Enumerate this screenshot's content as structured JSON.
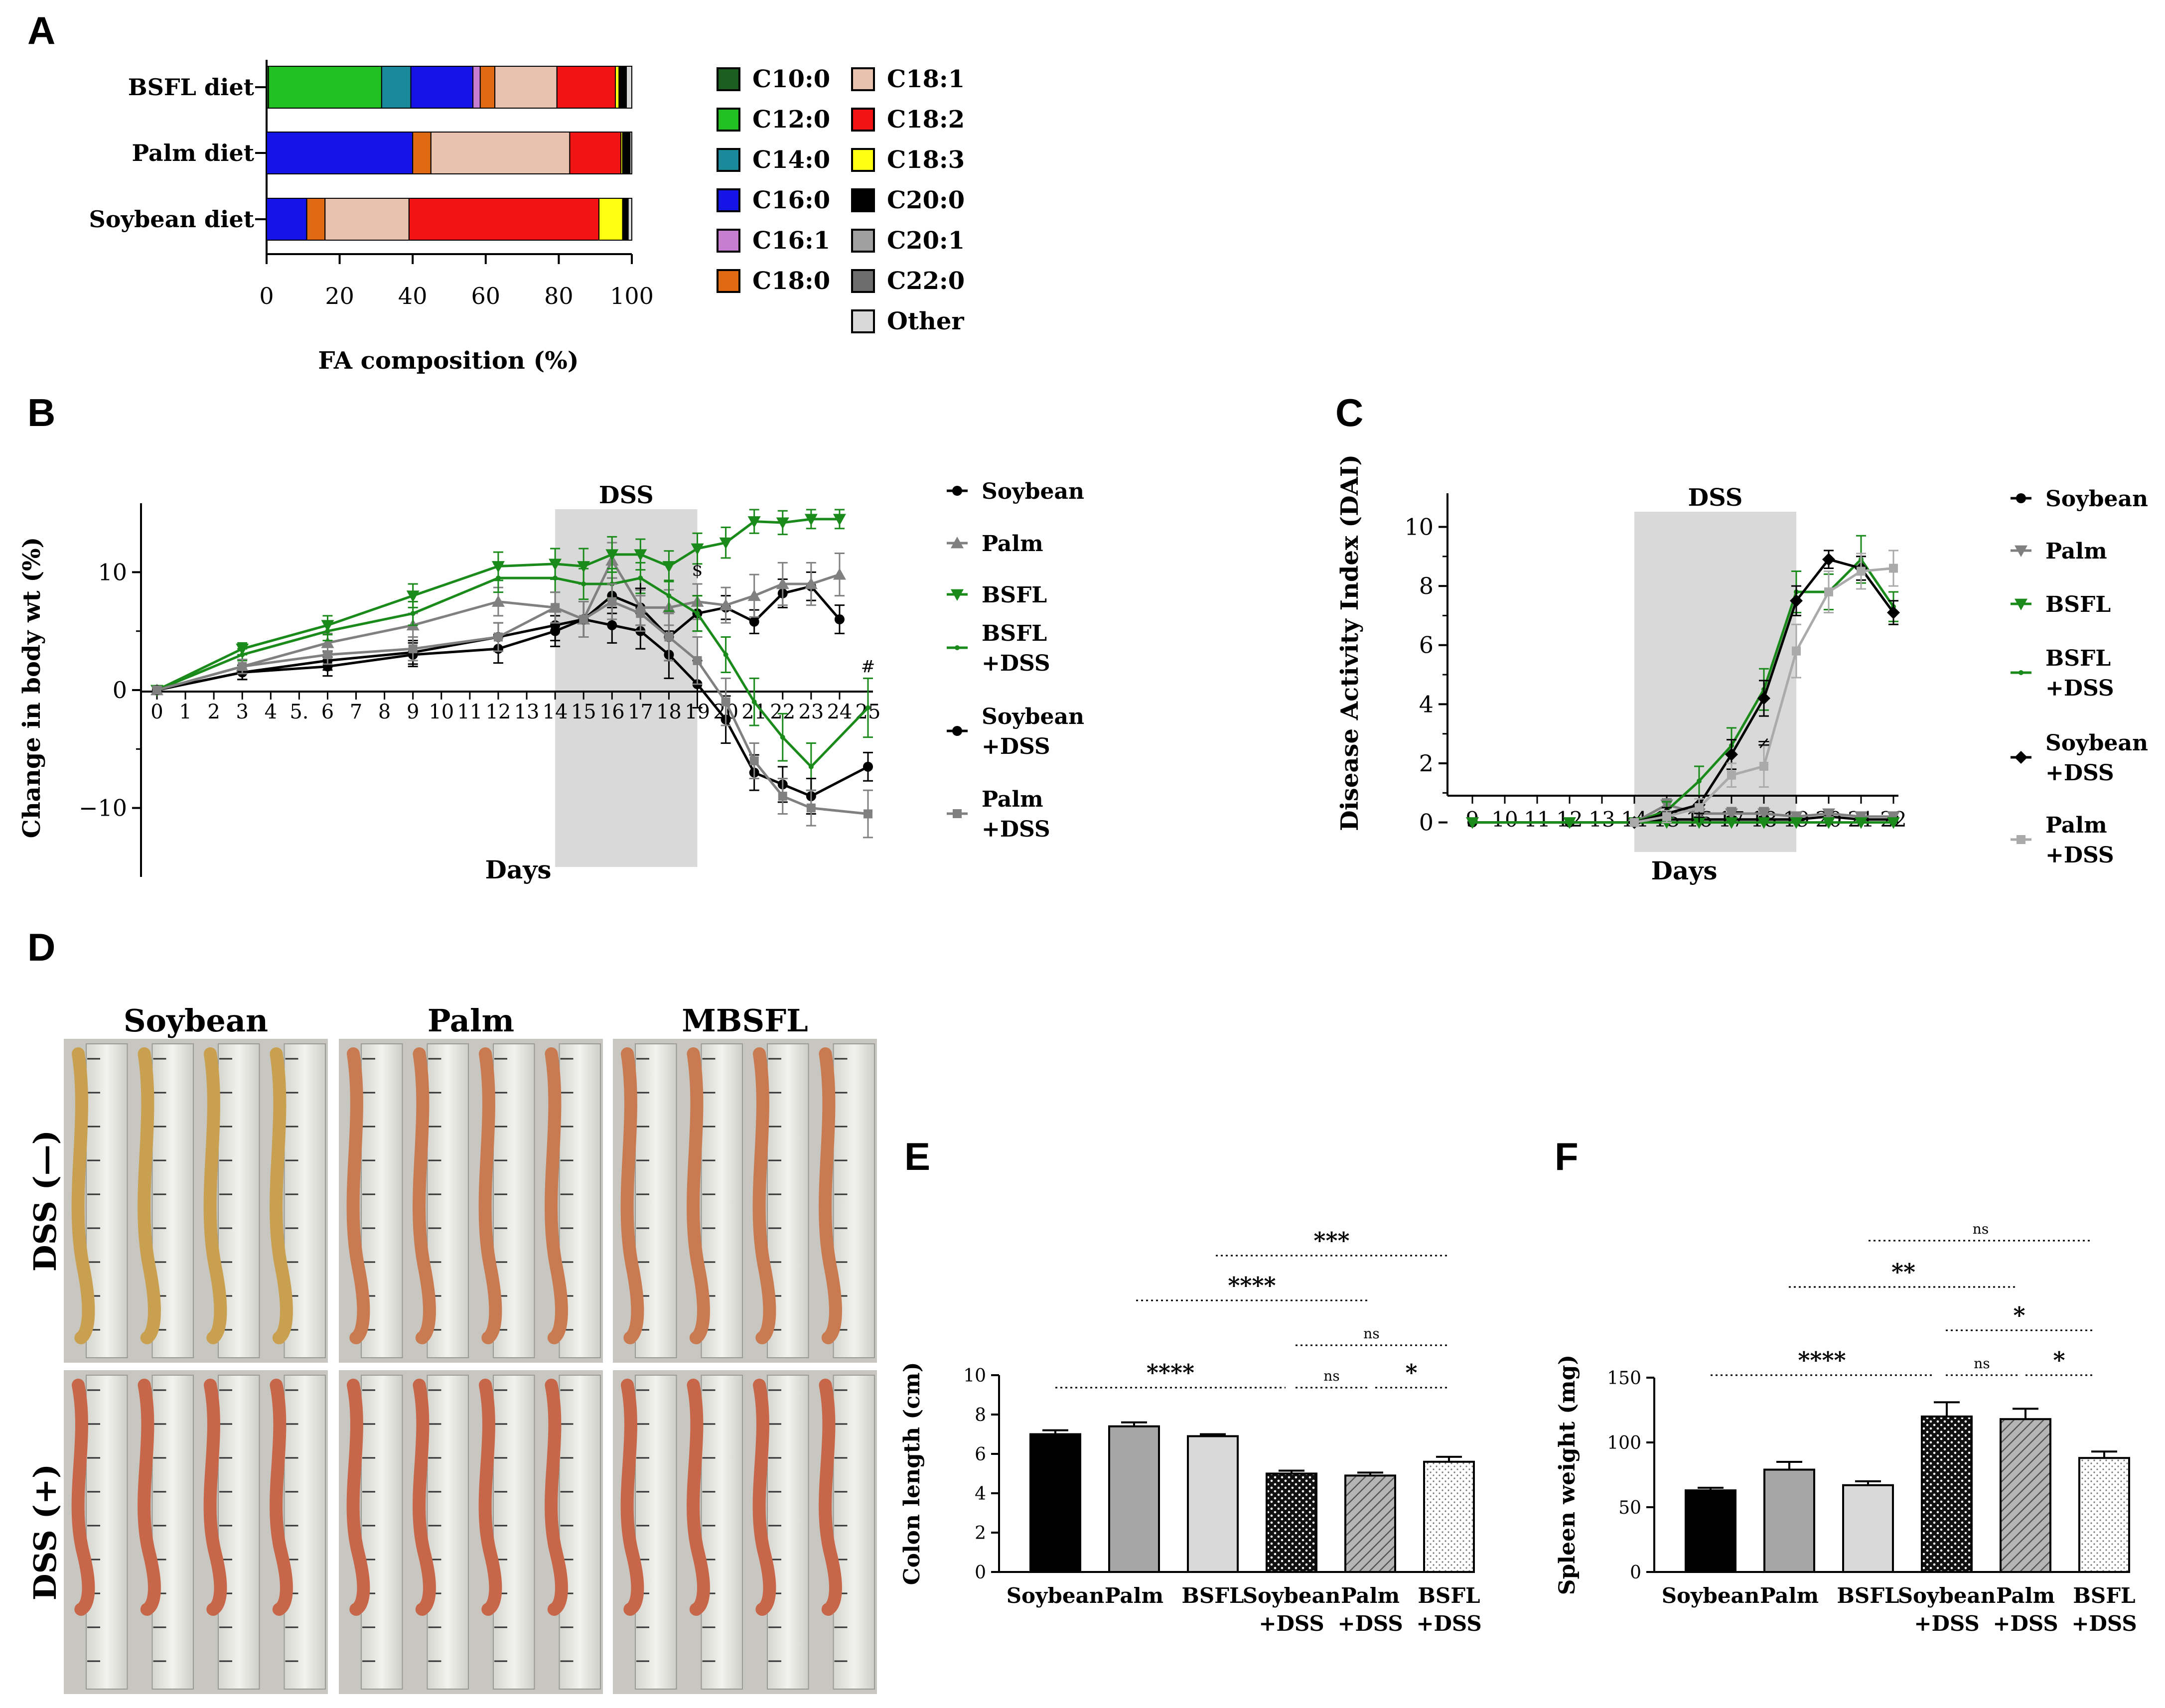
{
  "panels": {
    "A": {
      "label": "A"
    },
    "B": {
      "label": "B"
    },
    "C": {
      "label": "C"
    },
    "D": {
      "label": "D"
    },
    "E": {
      "label": "E"
    },
    "F": {
      "label": "F"
    }
  },
  "chart_data": [
    {
      "id": "A",
      "type": "bar",
      "orientation": "horizontal-stacked",
      "xlabel": "FA composition (%)",
      "xlim": [
        0,
        100
      ],
      "xticks": [
        "0",
        "20",
        "40",
        "60",
        "80",
        "100"
      ],
      "categories": [
        "BSFL diet",
        "Palm diet",
        "Soybean diet"
      ],
      "legend": [
        {
          "name": "C10:0",
          "color": "#1b5e20"
        },
        {
          "name": "C12:0",
          "color": "#22c022"
        },
        {
          "name": "C14:0",
          "color": "#1a8a9a"
        },
        {
          "name": "C16:0",
          "color": "#1414e6"
        },
        {
          "name": "C16:1",
          "color": "#c77dd0"
        },
        {
          "name": "C18:0",
          "color": "#e06a14"
        },
        {
          "name": "C18:1",
          "color": "#e8c2ae"
        },
        {
          "name": "C18:2",
          "color": "#f01414"
        },
        {
          "name": "C18:3",
          "color": "#ffff14"
        },
        {
          "name": "C20:0",
          "color": "#000000"
        },
        {
          "name": "C20:1",
          "color": "#a0a0a0"
        },
        {
          "name": "C22:0",
          "color": "#6c6c6c"
        },
        {
          "name": "Other",
          "color": "#d9d9d9"
        }
      ],
      "legend_position": "right",
      "segments": {
        "BSFL diet": [
          {
            "fa": "C10:0",
            "value": 0.5
          },
          {
            "fa": "C12:0",
            "value": 31
          },
          {
            "fa": "C14:0",
            "value": 8
          },
          {
            "fa": "C16:0",
            "value": 17
          },
          {
            "fa": "C16:1",
            "value": 2
          },
          {
            "fa": "C18:0",
            "value": 4
          },
          {
            "fa": "C18:1",
            "value": 17
          },
          {
            "fa": "C18:2",
            "value": 16
          },
          {
            "fa": "C18:3",
            "value": 1
          },
          {
            "fa": "C20:0",
            "value": 2
          },
          {
            "fa": "Other",
            "value": 1.5
          }
        ],
        "Palm diet": [
          {
            "fa": "C16:0",
            "value": 40
          },
          {
            "fa": "C18:0",
            "value": 5
          },
          {
            "fa": "C18:1",
            "value": 38
          },
          {
            "fa": "C18:2",
            "value": 14
          },
          {
            "fa": "C18:3",
            "value": 0.5
          },
          {
            "fa": "C20:0",
            "value": 2
          },
          {
            "fa": "Other",
            "value": 0.5
          }
        ],
        "Soybean diet": [
          {
            "fa": "C16:0",
            "value": 11
          },
          {
            "fa": "C18:0",
            "value": 5
          },
          {
            "fa": "C18:1",
            "value": 23
          },
          {
            "fa": "C18:2",
            "value": 52
          },
          {
            "fa": "C18:3",
            "value": 6.5
          },
          {
            "fa": "C20:0",
            "value": 1.5
          },
          {
            "fa": "Other",
            "value": 1
          }
        ]
      }
    },
    {
      "id": "B",
      "type": "line",
      "xlabel": "Days",
      "ylabel": "Change in body wt (%)",
      "ylim": [
        -15,
        15
      ],
      "yticks": [
        {
          "value": 10,
          "label": "10"
        },
        {
          "value": 0,
          "label": "0"
        },
        {
          "value": -10,
          "label": "−10"
        }
      ],
      "xlim": [
        0,
        25
      ],
      "xticks": [
        "0",
        "1",
        "2",
        "3",
        "4",
        "5.",
        "6",
        "7",
        "8",
        "9",
        "10",
        "11",
        "12",
        "13",
        "14",
        "15",
        "16",
        "17",
        "18",
        "19",
        "20",
        "21",
        "22",
        "23",
        "24",
        "25"
      ],
      "shade": {
        "from": 14,
        "to": 19,
        "label": "DSS"
      },
      "annotations": [
        {
          "text": "$",
          "x": 19,
          "y": 9.7
        },
        {
          "text": "#",
          "x": 25,
          "y": 1.5
        },
        {
          "text": "+",
          "x": 17,
          "y": 8.2
        }
      ],
      "series": [
        {
          "name": "Soybean",
          "color": "#000000",
          "marker": "dot",
          "x": [
            0,
            3,
            6,
            9,
            12,
            14,
            15,
            16,
            17,
            18,
            19,
            20,
            21,
            22,
            23,
            24
          ],
          "y": [
            0,
            1.5,
            2.5,
            3.2,
            4.5,
            5.5,
            6,
            8,
            7,
            4.5,
            6.5,
            7,
            5.8,
            8.2,
            8.8,
            6
          ],
          "err": [
            0.3,
            0.6,
            0.8,
            1,
            1.2,
            1.3,
            1.5,
            1.5,
            1.5,
            2,
            1.5,
            1,
            1,
            1.2,
            1.2,
            1.2
          ]
        },
        {
          "name": "Palm",
          "color": "#808080",
          "marker": "triangle-up",
          "x": [
            0,
            3,
            6,
            9,
            12,
            14,
            15,
            16,
            17,
            18,
            19,
            20,
            21,
            22,
            23,
            24
          ],
          "y": [
            0,
            2,
            4,
            5.5,
            7.5,
            7,
            6,
            11,
            7,
            7,
            7.5,
            7.2,
            8,
            9,
            9,
            9.8
          ],
          "err": [
            0.3,
            0.6,
            0.8,
            1,
            1.2,
            1.3,
            1.5,
            1.5,
            1.5,
            1.5,
            1.5,
            1.5,
            1.8,
            1.8,
            1.8,
            1.8
          ]
        },
        {
          "name": "BSFL",
          "color": "#1a8a1a",
          "marker": "triangle-down",
          "x": [
            0,
            3,
            6,
            9,
            12,
            14,
            15,
            16,
            17,
            18,
            19,
            20,
            21,
            22,
            23,
            24
          ],
          "y": [
            0,
            3.5,
            5.5,
            8,
            10.5,
            10.7,
            10.5,
            11.5,
            11.5,
            10.5,
            12,
            12.5,
            14.3,
            14.2,
            14.5,
            14.5
          ],
          "err": [
            0.3,
            0.5,
            0.8,
            1,
            1.2,
            1.3,
            1.5,
            1.5,
            1.3,
            1.3,
            1.3,
            1.3,
            1,
            1,
            0.8,
            0.8
          ]
        },
        {
          "name": "BSFL +DSS",
          "color": "#1a8a1a",
          "marker": "small",
          "x": [
            0,
            3,
            6,
            9,
            12,
            14,
            15,
            16,
            17,
            18,
            19,
            20,
            21,
            22,
            23,
            25
          ],
          "y": [
            0,
            3,
            5,
            6.5,
            9.5,
            9.5,
            9,
            9,
            9.5,
            8,
            6.5,
            3,
            -1,
            -4,
            -6.5,
            -1.5
          ],
          "err": [
            0.3,
            0.5,
            0.8,
            1,
            1.2,
            1.2,
            1.3,
            1.3,
            1.3,
            1.3,
            1.5,
            1.5,
            2,
            2,
            2,
            2.5
          ]
        },
        {
          "name": "Soybean +DSS",
          "color": "#000000",
          "marker": "dot",
          "x": [
            0,
            3,
            6,
            9,
            12,
            14,
            15,
            16,
            17,
            18,
            19,
            20,
            21,
            22,
            23,
            25
          ],
          "y": [
            0,
            1.5,
            2,
            3,
            3.5,
            5,
            6,
            5.5,
            5,
            3,
            0.5,
            -2.5,
            -7,
            -8,
            -9,
            -6.5
          ],
          "err": [
            0.3,
            0.6,
            0.8,
            1,
            1.2,
            1.3,
            1.5,
            1.5,
            1.5,
            2,
            2,
            2,
            1.5,
            1.5,
            1.5,
            1.2
          ]
        },
        {
          "name": "Palm +DSS",
          "color": "#808080",
          "marker": "square",
          "x": [
            0,
            3,
            6,
            9,
            12,
            14,
            15,
            16,
            17,
            18,
            19,
            20,
            21,
            22,
            23,
            25
          ],
          "y": [
            0,
            2,
            3,
            3.5,
            4.5,
            7,
            6,
            7.5,
            6.5,
            4.5,
            2.5,
            -1,
            -6,
            -9,
            -10,
            -10.5
          ],
          "err": [
            0.3,
            0.6,
            0.8,
            1,
            1.2,
            1.3,
            1.5,
            1.5,
            1.5,
            2,
            2,
            2,
            1.5,
            1.5,
            1.5,
            2
          ]
        }
      ]
    },
    {
      "id": "C",
      "type": "line",
      "xlabel": "Days",
      "ylabel": "Disease Activity Index (DAI)",
      "ylim": [
        -1,
        10.8
      ],
      "yticks": [
        "0",
        "2",
        "4",
        "6",
        "8",
        "10"
      ],
      "xlim": [
        9,
        22
      ],
      "xticks": [
        "9",
        "10",
        "11",
        "12",
        "13",
        "14",
        "15",
        "16",
        "17",
        "18",
        "19",
        "20",
        "21",
        "22"
      ],
      "shade": {
        "from": 14,
        "to": 19,
        "label": "DSS"
      },
      "annotations": [
        {
          "text": "≠",
          "x": 18,
          "y": 2.5
        },
        {
          "text": "+",
          "x": 16,
          "y": 0
        }
      ],
      "series": [
        {
          "name": "Soybean",
          "color": "#000000",
          "marker": "dot",
          "x": [
            9,
            12,
            14,
            15,
            16,
            17,
            18,
            19,
            20,
            21,
            22
          ],
          "y": [
            0,
            0,
            0,
            0.1,
            0.1,
            0.1,
            0.1,
            0.1,
            0.2,
            0.1,
            0.1
          ],
          "err": [
            0,
            0,
            0,
            0.1,
            0.1,
            0.1,
            0.1,
            0.1,
            0.1,
            0.1,
            0.1
          ]
        },
        {
          "name": "Palm",
          "color": "#808080",
          "marker": "triangle-down",
          "x": [
            9,
            12,
            14,
            15,
            16,
            17,
            18,
            19,
            20,
            21,
            22
          ],
          "y": [
            0,
            0,
            0,
            0.6,
            0.3,
            0.3,
            0.3,
            0.2,
            0.3,
            0.2,
            0.2
          ],
          "err": [
            0,
            0,
            0,
            0.2,
            0.2,
            0.2,
            0.2,
            0.1,
            0.1,
            0.1,
            0.1
          ]
        },
        {
          "name": "BSFL",
          "color": "#1a8a1a",
          "marker": "triangle-down",
          "x": [
            9,
            12,
            14,
            15,
            16,
            17,
            18,
            19,
            20,
            21,
            22
          ],
          "y": [
            0,
            0,
            0,
            0,
            0,
            0,
            0,
            0,
            0,
            0,
            0
          ],
          "err": [
            0,
            0,
            0,
            0,
            0,
            0,
            0,
            0,
            0,
            0,
            0
          ]
        },
        {
          "name": "BSFL +DSS",
          "color": "#1a8a1a",
          "marker": "small",
          "x": [
            14,
            15,
            16,
            17,
            18,
            19,
            20,
            21,
            22
          ],
          "y": [
            0,
            0.4,
            1.4,
            2.6,
            4.5,
            7.8,
            7.8,
            8.9,
            7.3
          ],
          "err": [
            0,
            0.3,
            0.5,
            0.6,
            0.7,
            0.7,
            0.6,
            0.8,
            0.5
          ]
        },
        {
          "name": "Soybean +DSS",
          "color": "#000000",
          "marker": "diamond",
          "x": [
            14,
            15,
            16,
            17,
            18,
            19,
            20,
            21,
            22
          ],
          "y": [
            0,
            0.3,
            0.6,
            2.3,
            4.2,
            7.5,
            8.9,
            8.6,
            7.1
          ],
          "err": [
            0,
            0.2,
            0.3,
            0.5,
            0.6,
            0.5,
            0.3,
            0.4,
            0.4
          ]
        },
        {
          "name": "Palm +DSS",
          "color": "#aaaaaa",
          "marker": "square",
          "x": [
            14,
            15,
            16,
            17,
            18,
            19,
            20,
            21,
            22
          ],
          "y": [
            0,
            0.2,
            0.5,
            1.6,
            1.9,
            5.8,
            7.8,
            8.5,
            8.6
          ],
          "err": [
            0,
            0.2,
            0.3,
            0.4,
            0.7,
            0.9,
            0.7,
            0.6,
            0.6
          ]
        }
      ]
    },
    {
      "id": "E",
      "type": "bar",
      "ylabel": "Colon length (cm)",
      "ylim": [
        0,
        10
      ],
      "yticks": [
        "0",
        "2",
        "4",
        "6",
        "8",
        "10"
      ],
      "categories": [
        "Soybean",
        "Palm",
        "BSFL",
        "Soybean +DSS",
        "Palm +DSS",
        "BSFL +DSS"
      ],
      "category_lines": [
        [
          "Soybean"
        ],
        [
          "Palm"
        ],
        [
          "BSFL"
        ],
        [
          "Soybean",
          "+DSS"
        ],
        [
          "Palm",
          "+DSS"
        ],
        [
          "BSFL",
          "+DSS"
        ]
      ],
      "values": [
        7.0,
        7.4,
        6.9,
        5.0,
        4.9,
        5.6
      ],
      "errors": [
        0.2,
        0.2,
        0.1,
        0.15,
        0.15,
        0.25
      ],
      "fills": [
        "#000000",
        "#a6a6a6",
        "#d9d9d9",
        "dots-black",
        "hatch",
        "dots-light"
      ],
      "significance": [
        {
          "from": 0,
          "to": 3,
          "text": "****"
        },
        {
          "from": 1,
          "to": 4,
          "text": "****"
        },
        {
          "from": 2,
          "to": 5,
          "text": "***"
        },
        {
          "from": 3,
          "to": 4,
          "text": "ns"
        },
        {
          "from": 3,
          "to": 5,
          "text": "ns"
        },
        {
          "from": 4,
          "to": 5,
          "text": "*"
        }
      ]
    },
    {
      "id": "F",
      "type": "bar",
      "ylabel": "Spleen weight (mg)",
      "ylim": [
        0,
        150
      ],
      "yticks": [
        "0",
        "50",
        "100",
        "150"
      ],
      "categories": [
        "Soybean",
        "Palm",
        "BSFL",
        "Soybean +DSS",
        "Palm +DSS",
        "BSFL +DSS"
      ],
      "category_lines": [
        [
          "Soybean"
        ],
        [
          "Palm"
        ],
        [
          "BSFL"
        ],
        [
          "Soybean",
          "+DSS"
        ],
        [
          "Palm",
          "+DSS"
        ],
        [
          "BSFL",
          "+DSS"
        ]
      ],
      "values": [
        63,
        79,
        67,
        120,
        118,
        88
      ],
      "errors": [
        2,
        6,
        3,
        11,
        8,
        5
      ],
      "fills": [
        "#000000",
        "#a6a6a6",
        "#d9d9d9",
        "dots-black",
        "hatch",
        "dots-light"
      ],
      "significance": [
        {
          "from": 0,
          "to": 3,
          "text": "****"
        },
        {
          "from": 1,
          "to": 4,
          "text": "**"
        },
        {
          "from": 2,
          "to": 5,
          "text": "ns"
        },
        {
          "from": 3,
          "to": 4,
          "text": "ns"
        },
        {
          "from": 3,
          "to": 5,
          "text": "*"
        },
        {
          "from": 4,
          "to": 5,
          "text": "*"
        }
      ]
    }
  ],
  "photos": {
    "columns": [
      "Soybean",
      "Palm",
      "MBSFL"
    ],
    "rows": [
      "DSS (—)",
      "DSS (+)"
    ]
  }
}
